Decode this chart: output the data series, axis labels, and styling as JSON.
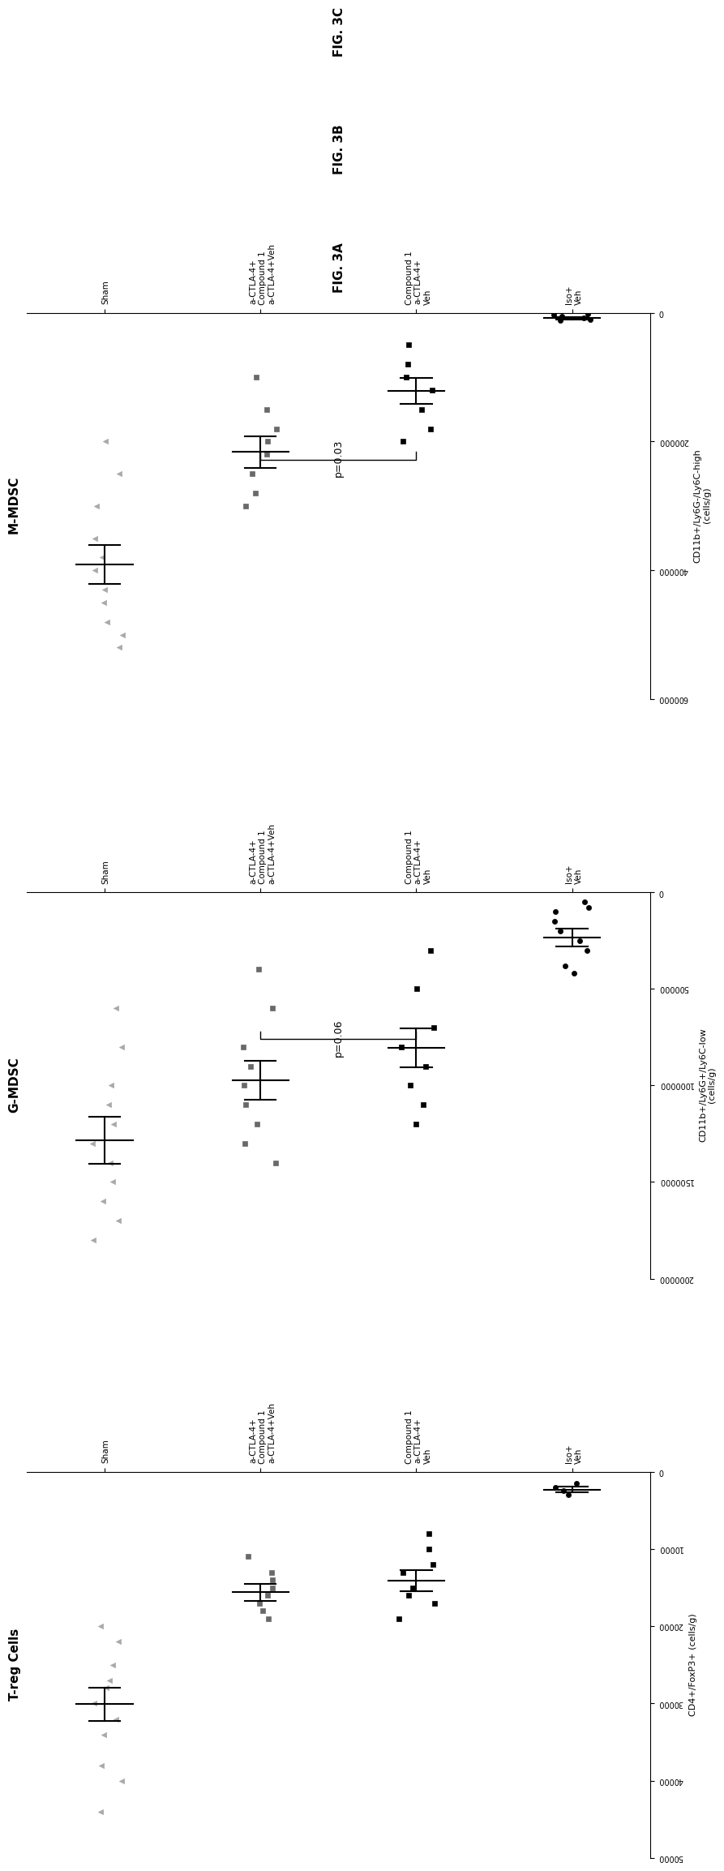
{
  "fig_width": 25.07,
  "fig_height": 12.4,
  "panels": [
    {
      "title": "T-reg Cells",
      "fig_label": "FIG. 3A",
      "xlabel": "CD4+/FoxP3+ (cells/g)",
      "xlim": [
        0,
        50000
      ],
      "xticks": [
        0,
        10000,
        20000,
        30000,
        40000,
        50000
      ],
      "xtick_labels": [
        "0",
        "10000",
        "20000",
        "30000",
        "40000",
        "50000"
      ],
      "groups": [
        "Iso+\nVeh",
        "Compound 1\na-CTLA-4+\nVeh",
        "a-CTLA-4+\nCompound 1\na-CTLA-4+Veh",
        "Sham"
      ],
      "markers": [
        "o",
        "s",
        "s",
        "^"
      ],
      "point_colors": [
        "black",
        "black",
        "dimgray",
        "darkgray"
      ],
      "data_points": [
        [
          1500,
          2000,
          2500,
          3000
        ],
        [
          8000,
          10000,
          12000,
          13000,
          15000,
          16000,
          17000,
          19000
        ],
        [
          11000,
          13000,
          14000,
          15000,
          16000,
          17000,
          18000,
          19000
        ],
        [
          20000,
          22000,
          25000,
          27000,
          28000,
          30000,
          32000,
          34000,
          38000,
          40000,
          44000
        ]
      ],
      "means": [
        2200,
        14000,
        15500,
        30000
      ],
      "sems": [
        400,
        1400,
        1100,
        2200
      ],
      "pvalue": null,
      "pvalue_groups": null
    },
    {
      "title": "G-MDSC",
      "fig_label": "FIG. 3B",
      "xlabel": "CD11b+/Ly6G+/Ly6C-low\n(cells/g)",
      "xlim": [
        0,
        2000000
      ],
      "xticks": [
        0,
        500000,
        1000000,
        1500000,
        2000000
      ],
      "xtick_labels": [
        "0",
        "500000",
        "1000000",
        "1500000",
        "2000000"
      ],
      "groups": [
        "Iso+\nVeh",
        "Compound 1\na-CTLA-4+\nVeh",
        "a-CTLA-4+\nCompound 1\na-CTLA-4+Veh",
        "Sham"
      ],
      "markers": [
        "o",
        "s",
        "s",
        "^"
      ],
      "point_colors": [
        "black",
        "black",
        "dimgray",
        "darkgray"
      ],
      "data_points": [
        [
          50000,
          80000,
          100000,
          150000,
          200000,
          250000,
          300000,
          380000,
          420000
        ],
        [
          300000,
          500000,
          700000,
          800000,
          900000,
          1000000,
          1100000,
          1200000
        ],
        [
          400000,
          600000,
          800000,
          900000,
          1000000,
          1100000,
          1200000,
          1300000,
          1400000
        ],
        [
          600000,
          800000,
          1000000,
          1100000,
          1200000,
          1300000,
          1400000,
          1500000,
          1600000,
          1700000,
          1800000
        ]
      ],
      "means": [
        230000,
        800000,
        970000,
        1280000
      ],
      "sems": [
        45000,
        100000,
        100000,
        120000
      ],
      "pvalue": "p=0.06",
      "pvalue_groups": [
        2,
        3
      ]
    },
    {
      "title": "M-MDSC",
      "fig_label": "FIG. 3C",
      "xlabel": "CD11b+/Ly6G-/Ly6C-high\n(cells/g)",
      "xlim": [
        0,
        600000
      ],
      "xticks": [
        0,
        200000,
        400000,
        600000
      ],
      "xtick_labels": [
        "0",
        "200000",
        "400000",
        "600000"
      ],
      "groups": [
        "Iso+\nVeh",
        "Compound 1\na-CTLA-4+\nVeh",
        "a-CTLA-4+\nCompound 1\na-CTLA-4+Veh",
        "Sham"
      ],
      "markers": [
        "o",
        "s",
        "s",
        "^"
      ],
      "point_colors": [
        "black",
        "black",
        "dimgray",
        "darkgray"
      ],
      "data_points": [
        [
          2000,
          3000,
          5000,
          8000,
          10000,
          12000
        ],
        [
          50000,
          80000,
          100000,
          120000,
          150000,
          180000,
          200000
        ],
        [
          100000,
          150000,
          180000,
          200000,
          220000,
          250000,
          280000,
          300000
        ],
        [
          200000,
          250000,
          300000,
          350000,
          380000,
          400000,
          430000,
          450000,
          480000,
          500000,
          520000
        ]
      ],
      "means": [
        7000,
        120000,
        215000,
        390000
      ],
      "sems": [
        1800,
        20000,
        25000,
        30000
      ],
      "pvalue": "p=0.03",
      "pvalue_groups": [
        2,
        3
      ]
    }
  ]
}
